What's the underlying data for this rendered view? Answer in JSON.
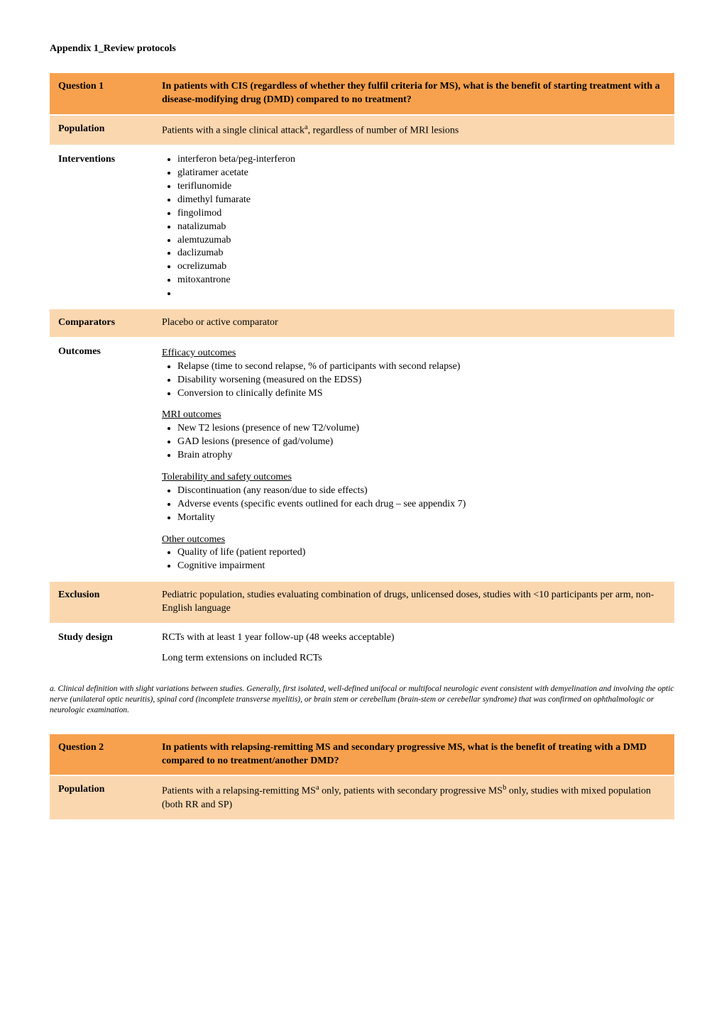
{
  "page_title": "Appendix 1_Review protocols",
  "colors": {
    "header_bg": "#f7a14e",
    "sub_bg": "#fbd7b0",
    "white_bg": "#ffffff",
    "text": "#000000"
  },
  "q1": {
    "label": "Question 1",
    "text": "In patients with CIS (regardless of whether they fulfil criteria for MS), what is the benefit of starting treatment with a disease-modifying drug (DMD) compared to no treatment?",
    "population_label": "Population",
    "population_text": "Patients with a single clinical attack",
    "population_sup": "a",
    "population_tail": ", regardless of number of MRI lesions",
    "interventions_label": "Interventions",
    "interventions": [
      "interferon beta/peg-interferon",
      "glatiramer acetate",
      "teriflunomide",
      "dimethyl fumarate",
      "fingolimod",
      "natalizumab",
      "alemtuzumab",
      "daclizumab",
      "ocrelizumab",
      "mitoxantrone"
    ],
    "comparators_label": "Comparators",
    "comparators_text": "Placebo or active comparator",
    "outcomes_label": "Outcomes",
    "efficacy_heading": "Efficacy outcomes",
    "efficacy": [
      "Relapse (time to second relapse, % of participants with second relapse)",
      "Disability worsening (measured on the EDSS)",
      "Conversion to clinically definite MS"
    ],
    "mri_heading": "MRI outcomes",
    "mri": [
      "New T2 lesions (presence of new T2/volume)",
      "GAD lesions (presence of gad/volume)",
      "Brain atrophy"
    ],
    "tol_heading": "Tolerability and safety outcomes",
    "tol": [
      "Discontinuation (any reason/due to side effects)",
      "Adverse events (specific events outlined for each drug – see appendix 7)",
      "Mortality"
    ],
    "other_heading": "Other outcomes",
    "other": [
      "Quality of life (patient reported)",
      "Cognitive impairment"
    ],
    "exclusion_label": "Exclusion",
    "exclusion_text": "Pediatric population, studies evaluating combination of drugs, unlicensed doses, studies with <10 participants per arm, non-English language",
    "study_label": "Study design",
    "study_text1": "RCTs with at least 1 year follow-up (48 weeks acceptable)",
    "study_text2": "Long term extensions on included RCTs"
  },
  "footnote": "a. Clinical definition with slight variations between studies. Generally, first isolated, well-defined unifocal or multifocal neurologic event consistent with demyelination and involving the optic nerve (unilateral optic neuritis), spinal cord (incomplete transverse myelitis), or brain stem or cerebellum (brain-stem or cerebellar syndrome) that was confirmed on ophthalmologic or neurologic examination.",
  "q2": {
    "label": "Question 2",
    "text": "In patients with relapsing-remitting MS and secondary progressive MS, what is the benefit of treating with a DMD compared to no treatment/another DMD?",
    "population_label": "Population",
    "pop_pre": "Patients with a relapsing-remitting MS",
    "pop_sup1": "a",
    "pop_mid": " only, patients with secondary progressive MS",
    "pop_sup2": "b",
    "pop_tail": " only, studies with mixed population (both RR and SP)"
  }
}
